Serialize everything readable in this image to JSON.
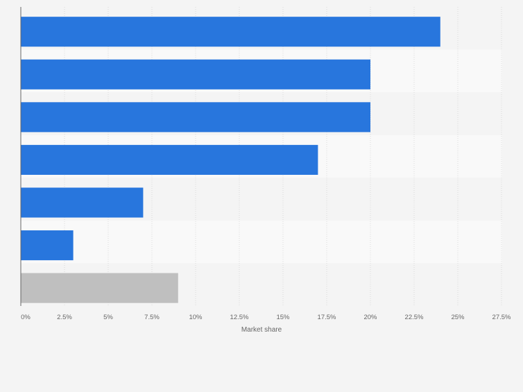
{
  "chart_data": {
    "type": "bar",
    "orientation": "horizontal",
    "categories": [
      "",
      "",
      "",
      "",
      "",
      "",
      ""
    ],
    "values": [
      24,
      20,
      20,
      17,
      7,
      3,
      9
    ],
    "bar_colors": [
      "#2876dd",
      "#2876dd",
      "#2876dd",
      "#2876dd",
      "#2876dd",
      "#2876dd",
      "#bfbfbf"
    ],
    "xlabel": "Market share",
    "xlim": [
      0,
      27.5
    ],
    "xticks": [
      0,
      2.5,
      5,
      7.5,
      10,
      12.5,
      15,
      17.5,
      20,
      22.5,
      25,
      27.5
    ],
    "xtick_labels": [
      "0%",
      "2.5%",
      "5%",
      "7.5%",
      "10%",
      "12.5%",
      "15%",
      "17.5%",
      "20%",
      "22.5%",
      "25%",
      "27.5%"
    ],
    "grid": true,
    "legend": "none"
  }
}
